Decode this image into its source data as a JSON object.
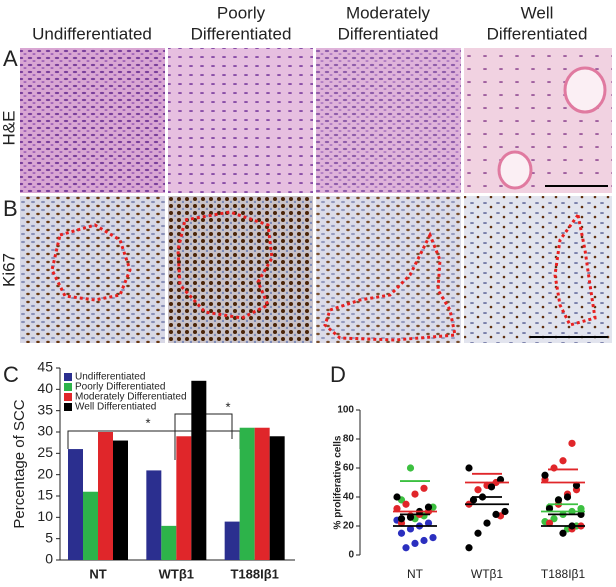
{
  "panel_labels": [
    "A",
    "B",
    "C",
    "D"
  ],
  "column_headers": [
    [
      "Undifferentiated"
    ],
    [
      "Poorly",
      "Differentiated"
    ],
    [
      "Moderately",
      "Differentiated"
    ],
    [
      "Well",
      "Differentiated"
    ]
  ],
  "row_labels": [
    "H&E",
    "Ki67"
  ],
  "chart_data": [
    {
      "type": "bar",
      "y_label": "Percentage of SCC",
      "categories": [
        "NT",
        "WTβ1",
        "T188Iβ1"
      ],
      "series": [
        {
          "name": "Undifferentiated",
          "color": "#2b2f8f",
          "values": [
            26,
            21,
            9
          ]
        },
        {
          "name": "Poorly Differentiated",
          "color": "#2db34a",
          "values": [
            16,
            8,
            31
          ]
        },
        {
          "name": "Moderately Differentiated",
          "color": "#e0262a",
          "values": [
            30,
            29,
            31
          ]
        },
        {
          "name": "Well Differentiated",
          "color": "#000000",
          "values": [
            28,
            42,
            29
          ]
        }
      ],
      "ylim": [
        0,
        45
      ],
      "yticks": [
        0,
        5,
        10,
        15,
        20,
        25,
        30,
        35,
        40,
        45
      ],
      "annotations": [
        "*",
        "*"
      ]
    },
    {
      "type": "dotplot",
      "y_label": "% proliferative cells",
      "categories": [
        "NT",
        "WTβ1",
        "T188Iβ1"
      ],
      "series": [
        {
          "color": "#2b2fbf",
          "values": [
            [
              24,
              22,
              20,
              18,
              15,
              12,
              10,
              8,
              5
            ],
            [],
            []
          ]
        },
        {
          "color": "#3cc040",
          "values": [
            [
              60,
              38,
              33,
              27,
              25
            ],
            [],
            [
              38,
              33,
              32,
              30,
              28,
              25,
              23,
              20,
              18
            ]
          ]
        },
        {
          "color": "#e0262a",
          "values": [
            [
              46,
              42,
              35,
              32,
              30,
              28,
              27,
              22
            ],
            [
              50,
              48,
              45,
              35,
              27
            ],
            [
              77,
              65,
              60,
              52,
              45,
              42,
              35,
              22,
              20,
              18
            ]
          ]
        },
        {
          "color": "#000000",
          "values": [
            [
              40,
              33,
              30,
              26,
              25
            ],
            [
              60,
              52,
              47,
              40,
              38,
              30,
              28,
              22,
              15,
              5
            ],
            [
              55,
              48,
              40,
              38,
              32,
              28,
              20,
              15
            ]
          ]
        }
      ],
      "summary": [
        [
          {
            "y": 51,
            "color": "#3cc040"
          },
          {
            "y": 30,
            "color": "#e0262a"
          },
          {
            "y": 28,
            "color": "#000000"
          },
          {
            "y": 20,
            "color": "#000000"
          }
        ],
        [
          {
            "y": 56,
            "color": "#e0262a"
          },
          {
            "y": 50,
            "color": "#e0262a"
          },
          {
            "y": 40,
            "color": "#000000"
          },
          {
            "y": 35,
            "color": "#000000"
          }
        ],
        [
          {
            "y": 59,
            "color": "#e0262a"
          },
          {
            "y": 50,
            "color": "#e0262a"
          },
          {
            "y": 35,
            "color": "#3cc040"
          },
          {
            "y": 30,
            "color": "#3cc040"
          },
          {
            "y": 28,
            "color": "#000000"
          },
          {
            "y": 20,
            "color": "#000000"
          }
        ]
      ],
      "ylim": [
        0,
        100
      ],
      "yticks": [
        0,
        20,
        40,
        60,
        80,
        100
      ]
    }
  ]
}
